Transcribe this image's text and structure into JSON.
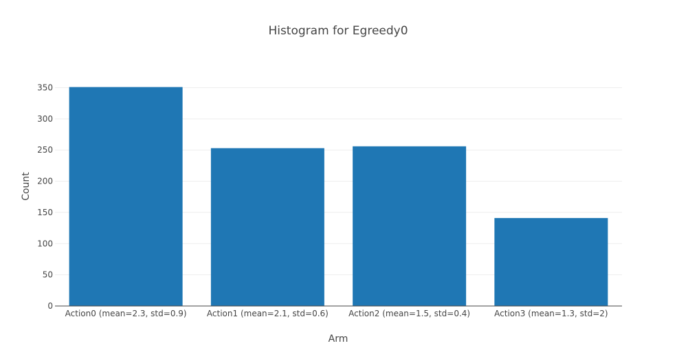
{
  "chart_data": {
    "type": "bar",
    "title": "Histogram for Egreedy0",
    "xlabel": "Arm",
    "ylabel": "Count",
    "categories": [
      "Action0 (mean=2.3, std=0.9)",
      "Action1 (mean=2.1, std=0.6)",
      "Action2 (mean=1.5, std=0.4)",
      "Action3 (mean=1.3, std=2)"
    ],
    "values": [
      351,
      253,
      256,
      141
    ],
    "ylim": [
      0,
      366
    ],
    "yticks": [
      0,
      50,
      100,
      150,
      200,
      250,
      300,
      350
    ],
    "grid": true,
    "bar_color": "#1f77b4"
  }
}
